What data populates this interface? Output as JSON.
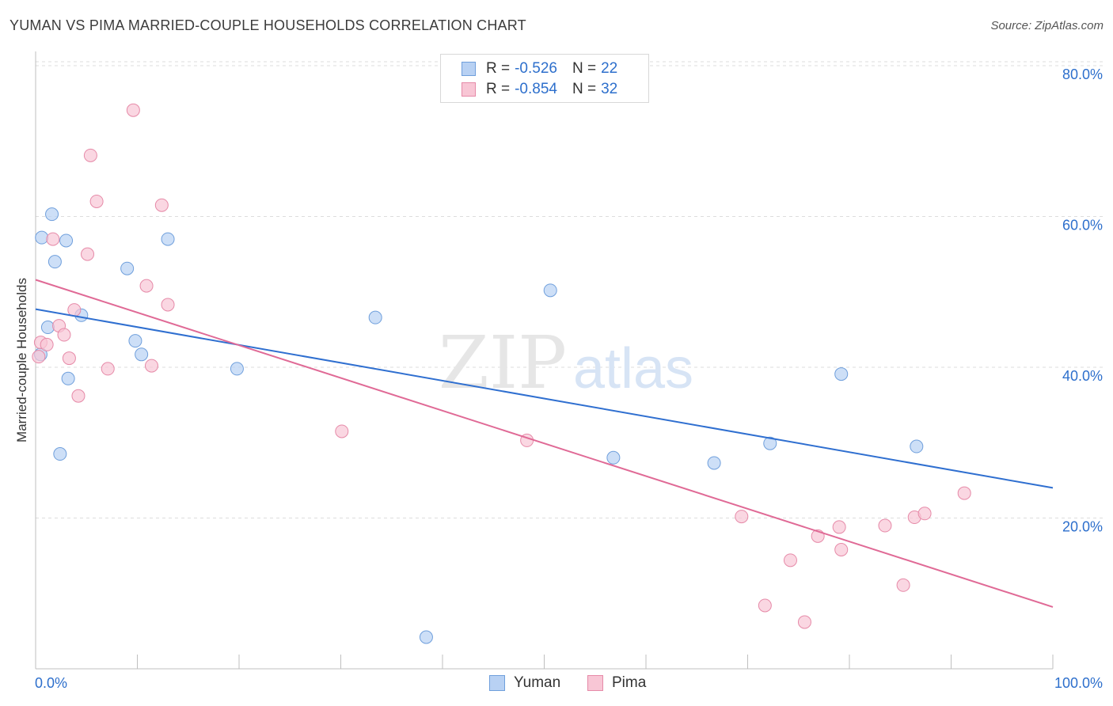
{
  "title": "YUMAN VS PIMA MARRIED-COUPLE HOUSEHOLDS CORRELATION CHART",
  "source": "Source: ZipAtlas.com",
  "watermark": {
    "zip": "ZIP",
    "atlas": "atlas"
  },
  "colors": {
    "yuman_fill": "#b8d1f3",
    "yuman_stroke": "#6f9fdc",
    "yuman_line": "#2f6fd0",
    "pima_fill": "#f8c6d5",
    "pima_stroke": "#e68aa8",
    "pima_line": "#e06a96",
    "tick_label": "#2d6fcc",
    "grid": "#dddddd"
  },
  "legend": {
    "rows": [
      {
        "r_label": "R =",
        "r_value": "-0.526",
        "n_label": "N =",
        "n_value": "22"
      },
      {
        "r_label": "R =",
        "r_value": "-0.854",
        "n_label": "N =",
        "n_value": "32"
      }
    ]
  },
  "bottom_legend": {
    "yuman": "Yuman",
    "pima": "Pima"
  },
  "chart_data": {
    "type": "scatter",
    "title": "YUMAN VS PIMA MARRIED-COUPLE HOUSEHOLDS CORRELATION CHART",
    "xlabel": "",
    "ylabel": "Married-couple Households",
    "xlim": [
      0,
      100
    ],
    "ylim": [
      0,
      85
    ],
    "x_tick_labels": [
      "0.0%",
      "100.0%"
    ],
    "y_ticks": [
      20,
      40,
      60,
      80
    ],
    "y_tick_labels": [
      "20.0%",
      "40.0%",
      "60.0%",
      "80.0%"
    ],
    "series": [
      {
        "name": "Yuman",
        "r": -0.526,
        "n": 22,
        "trend": {
          "x": [
            0,
            100
          ],
          "y": [
            47.7,
            24.0
          ]
        },
        "points": [
          {
            "x": 0.5,
            "y": 41.7
          },
          {
            "x": 0.6,
            "y": 57.2
          },
          {
            "x": 1.2,
            "y": 45.3
          },
          {
            "x": 1.6,
            "y": 60.3
          },
          {
            "x": 1.9,
            "y": 54.0
          },
          {
            "x": 2.4,
            "y": 28.5
          },
          {
            "x": 3.0,
            "y": 56.8
          },
          {
            "x": 3.2,
            "y": 38.5
          },
          {
            "x": 4.5,
            "y": 46.9
          },
          {
            "x": 9.0,
            "y": 53.1
          },
          {
            "x": 9.8,
            "y": 43.5
          },
          {
            "x": 10.4,
            "y": 41.7
          },
          {
            "x": 13.0,
            "y": 57.0
          },
          {
            "x": 19.8,
            "y": 39.8
          },
          {
            "x": 33.4,
            "y": 46.6
          },
          {
            "x": 38.4,
            "y": 4.2
          },
          {
            "x": 50.6,
            "y": 50.2
          },
          {
            "x": 56.8,
            "y": 28.0
          },
          {
            "x": 66.7,
            "y": 27.3
          },
          {
            "x": 72.2,
            "y": 29.9
          },
          {
            "x": 79.2,
            "y": 39.1
          },
          {
            "x": 86.6,
            "y": 29.5
          }
        ]
      },
      {
        "name": "Pima",
        "r": -0.854,
        "n": 32,
        "trend": {
          "x": [
            0,
            100
          ],
          "y": [
            51.6,
            8.2
          ]
        },
        "points": [
          {
            "x": 0.3,
            "y": 41.4
          },
          {
            "x": 0.5,
            "y": 43.3
          },
          {
            "x": 1.1,
            "y": 43.0
          },
          {
            "x": 1.7,
            "y": 57.0
          },
          {
            "x": 2.3,
            "y": 45.5
          },
          {
            "x": 2.8,
            "y": 44.3
          },
          {
            "x": 3.3,
            "y": 41.2
          },
          {
            "x": 3.8,
            "y": 47.6
          },
          {
            "x": 4.2,
            "y": 36.2
          },
          {
            "x": 5.1,
            "y": 55.0
          },
          {
            "x": 5.4,
            "y": 68.1
          },
          {
            "x": 6.0,
            "y": 62.0
          },
          {
            "x": 7.1,
            "y": 39.8
          },
          {
            "x": 9.6,
            "y": 74.1
          },
          {
            "x": 10.9,
            "y": 50.8
          },
          {
            "x": 11.4,
            "y": 40.2
          },
          {
            "x": 12.4,
            "y": 61.5
          },
          {
            "x": 13.0,
            "y": 48.3
          },
          {
            "x": 30.1,
            "y": 31.5
          },
          {
            "x": 48.3,
            "y": 30.3
          },
          {
            "x": 69.4,
            "y": 20.2
          },
          {
            "x": 71.7,
            "y": 8.4
          },
          {
            "x": 74.2,
            "y": 14.4
          },
          {
            "x": 75.6,
            "y": 6.2
          },
          {
            "x": 76.9,
            "y": 17.6
          },
          {
            "x": 79.0,
            "y": 18.8
          },
          {
            "x": 79.2,
            "y": 15.8
          },
          {
            "x": 83.5,
            "y": 19.0
          },
          {
            "x": 85.3,
            "y": 11.1
          },
          {
            "x": 86.4,
            "y": 20.1
          },
          {
            "x": 87.4,
            "y": 20.6
          },
          {
            "x": 91.3,
            "y": 23.3
          }
        ]
      }
    ]
  }
}
